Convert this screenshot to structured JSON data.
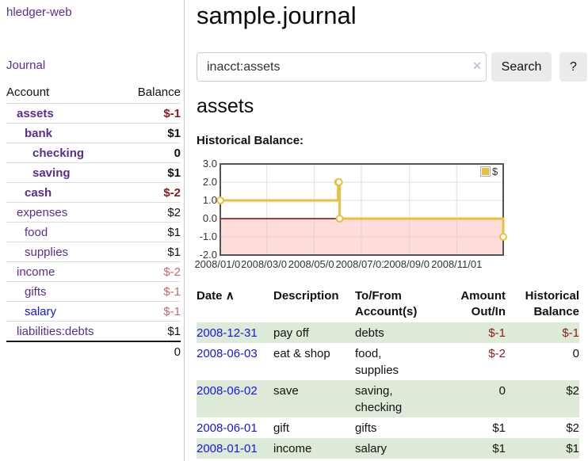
{
  "sidebar": {
    "brand": "hledger-web",
    "nav_journal": "Journal",
    "accounts_table": {
      "header_account": "Account",
      "header_balance": "Balance",
      "rows": [
        {
          "name": "assets",
          "balance": "$-1",
          "level": 1,
          "bold": true,
          "neg": "strong"
        },
        {
          "name": "bank",
          "balance": "$1",
          "level": 2,
          "bold": true
        },
        {
          "name": "checking",
          "balance": "0",
          "level": 3,
          "bold": true
        },
        {
          "name": "saving",
          "balance": "$1",
          "level": 3,
          "bold": true
        },
        {
          "name": "cash",
          "balance": "$-2",
          "level": 2,
          "bold": true,
          "neg": "strong"
        },
        {
          "name": "expenses",
          "balance": "$2",
          "level": 1
        },
        {
          "name": "food",
          "balance": "$1",
          "level": 2
        },
        {
          "name": "supplies",
          "balance": "$1",
          "level": 2
        },
        {
          "name": "income",
          "balance": "$-2",
          "level": 1,
          "neg": "pale"
        },
        {
          "name": "gifts",
          "balance": "$-1",
          "level": 2,
          "neg": "pale"
        },
        {
          "name": "salary",
          "balance": "$-1",
          "level": 2,
          "neg": "pale",
          "link": "blue"
        },
        {
          "name": "liabilities:debts",
          "balance": "$1",
          "level": 1
        }
      ],
      "total": "0"
    }
  },
  "main": {
    "title": "sample.journal",
    "search": {
      "value": "inacct:assets",
      "clear_icon": "×",
      "button_label": "Search",
      "help_label": "?"
    },
    "section_title": "assets",
    "chart_label": "Historical Balance:",
    "register_table": {
      "headers": {
        "date": "Date",
        "sort_icon": "∧",
        "description": "Description",
        "tofrom_line1": "To/From",
        "tofrom_line2": "Account(s)",
        "amount_line1": "Amount",
        "amount_line2": "Out/In",
        "balance_line1": "Historical",
        "balance_line2": "Balance"
      },
      "rows": [
        {
          "date": "2008-12-31",
          "description": "pay off",
          "accounts": "debts",
          "amount": "$-1",
          "balance": "$-1",
          "amount_negative": true,
          "balance_negative": true,
          "shaded": true
        },
        {
          "date": "2008-06-03",
          "description": "eat & shop",
          "accounts": "food, supplies",
          "amount": "$-2",
          "balance": "0",
          "amount_negative": true,
          "balance_negative": false,
          "shaded": false
        },
        {
          "date": "2008-06-02",
          "description": "save",
          "accounts": "saving, checking",
          "amount": "0",
          "balance": "$2",
          "amount_negative": false,
          "balance_negative": false,
          "shaded": true
        },
        {
          "date": "2008-06-01",
          "description": "gift",
          "accounts": "gifts",
          "amount": "$1",
          "balance": "$2",
          "amount_negative": false,
          "balance_negative": false,
          "shaded": false
        },
        {
          "date": "2008-01-01",
          "description": "income",
          "accounts": "salary",
          "amount": "$1",
          "balance": "$1",
          "amount_negative": false,
          "balance_negative": false,
          "shaded": true
        }
      ]
    }
  },
  "chart_data": {
    "type": "line",
    "step": true,
    "title": "Historical Balance:",
    "legend": {
      "position": "top-right",
      "label": "$",
      "swatch_color": "#e8bf3e"
    },
    "series": [
      {
        "name": "$",
        "color": "#e8bf3e",
        "points": [
          [
            "2008-01-01",
            1
          ],
          [
            "2008-06-01",
            2
          ],
          [
            "2008-06-02",
            2
          ],
          [
            "2008-06-03",
            0
          ],
          [
            "2008-12-31",
            -1
          ]
        ]
      }
    ],
    "xlim": [
      "2008-01-01",
      "2008-12-31"
    ],
    "ylim": [
      -2,
      3
    ],
    "y_ticks": [
      "3.0",
      "2.0",
      "1.0",
      "0.0",
      "-1.0",
      "-2.0"
    ],
    "x_ticks": [
      "2008/01/01",
      "2008/03/01",
      "2008/05/01",
      "2008/07/01",
      "2008/09/01",
      "2008/11/01"
    ],
    "grid": true,
    "negative_region_color": "#ffdcdc",
    "zero_line_color": "#8b0000",
    "gridline_color": "#e0e0e0",
    "gridline_color_negative": "#e9cdcd"
  }
}
